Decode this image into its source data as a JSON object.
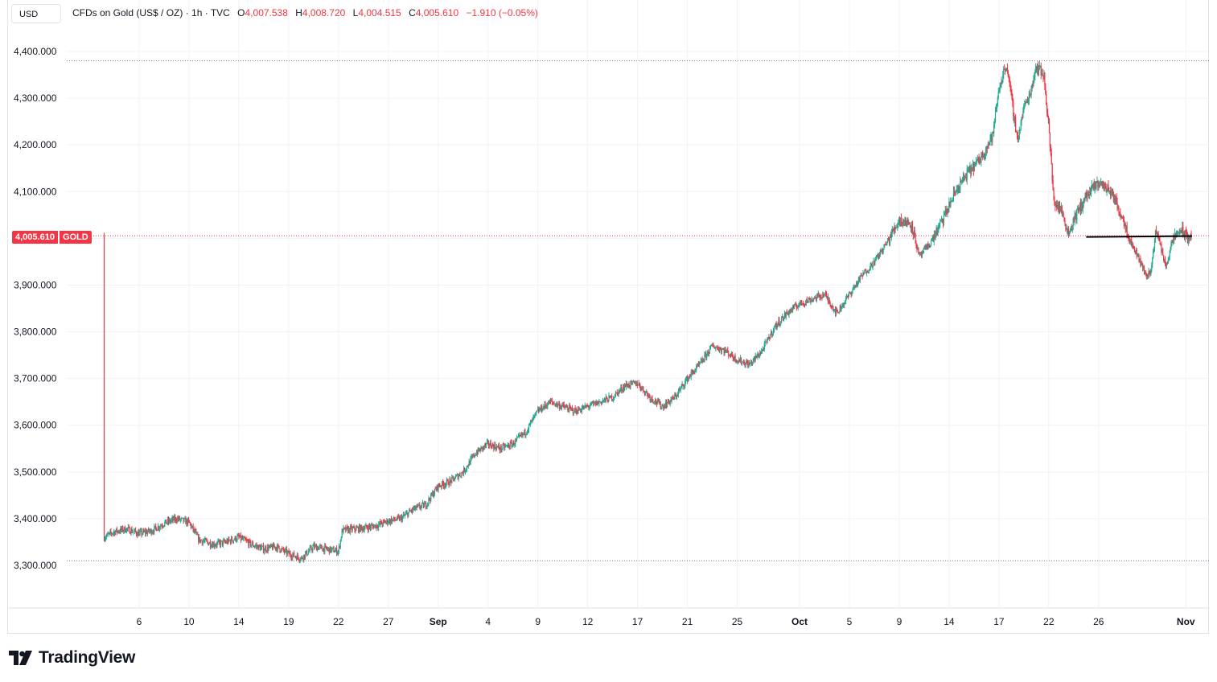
{
  "currency_label": "USD",
  "legend": {
    "title": "CFDs on Gold (US$ / OZ) · 1h · TVC",
    "open_label": "O",
    "open": "4,007.538",
    "high_label": "H",
    "high": "4,008.720",
    "low_label": "L",
    "low": "4,004.515",
    "close_label": "C",
    "close": "4,005.610",
    "change": "−1.910 (−0.05%)"
  },
  "last_price": {
    "value": "4,005.610",
    "symbol": "GOLD"
  },
  "brand": "TradingView",
  "colors": {
    "up": "#22ab94",
    "down": "#f23645",
    "grid": "#f0f3fa",
    "axis_text": "#131722"
  },
  "chart_data": {
    "type": "candlestick",
    "title": "CFDs on Gold (US$ / OZ) · 1h · TVC",
    "ylim": [
      3230,
      4460
    ],
    "y_ticks": [
      {
        "value": 3300,
        "label": "3,300.000"
      },
      {
        "value": 3400,
        "label": "3,400.000"
      },
      {
        "value": 3500,
        "label": "3,500.000"
      },
      {
        "value": 3600,
        "label": "3,600.000"
      },
      {
        "value": 3700,
        "label": "3,700.000"
      },
      {
        "value": 3800,
        "label": "3,800.000"
      },
      {
        "value": 3900,
        "label": "3,900.000"
      },
      {
        "value": 4000,
        "label": "4,000.000"
      },
      {
        "value": 4100,
        "label": "4,100.000"
      },
      {
        "value": 4200,
        "label": "4,200.000"
      },
      {
        "value": 4300,
        "label": "4,300.000"
      },
      {
        "value": 4400,
        "label": "4,400.000"
      }
    ],
    "x_range": [
      3.1,
      90.5
    ],
    "x_ticks": [
      {
        "day": 6,
        "label": "6"
      },
      {
        "day": 10,
        "label": "10"
      },
      {
        "day": 14,
        "label": "14"
      },
      {
        "day": 18,
        "label": "19"
      },
      {
        "day": 22,
        "label": "22"
      },
      {
        "day": 26,
        "label": "27"
      },
      {
        "day": 30,
        "label": "Sep"
      },
      {
        "day": 34,
        "label": "4"
      },
      {
        "day": 38,
        "label": "9"
      },
      {
        "day": 42,
        "label": "12"
      },
      {
        "day": 46,
        "label": "17"
      },
      {
        "day": 50,
        "label": "21"
      },
      {
        "day": 54,
        "label": "25"
      },
      {
        "day": 59,
        "label": "Oct"
      },
      {
        "day": 63,
        "label": "5"
      },
      {
        "day": 67,
        "label": "9"
      },
      {
        "day": 71,
        "label": "14"
      },
      {
        "day": 75,
        "label": "17"
      },
      {
        "day": 79,
        "label": "22"
      },
      {
        "day": 83,
        "label": "26"
      },
      {
        "day": 90,
        "label": "Nov"
      }
    ],
    "bold_x_labels": [
      "Sep",
      "Oct",
      "Nov"
    ],
    "high_line": 4380,
    "low_line": 3310,
    "last_price": 4005.61,
    "trendline": {
      "from": [
        82,
        4003
      ],
      "to": [
        90.5,
        4005
      ]
    },
    "path": [
      [
        3.2,
        3360
      ],
      [
        4,
        3372
      ],
      [
        5,
        3378
      ],
      [
        6,
        3368
      ],
      [
        7,
        3374
      ],
      [
        8,
        3390
      ],
      [
        9,
        3400
      ],
      [
        10,
        3392
      ],
      [
        10.8,
        3355
      ],
      [
        12,
        3345
      ],
      [
        13,
        3350
      ],
      [
        14,
        3360
      ],
      [
        15,
        3345
      ],
      [
        16,
        3335
      ],
      [
        17,
        3340
      ],
      [
        18,
        3325
      ],
      [
        19,
        3315
      ],
      [
        20,
        3340
      ],
      [
        21,
        3335
      ],
      [
        22,
        3330
      ],
      [
        22.3,
        3375
      ],
      [
        24,
        3380
      ],
      [
        25,
        3385
      ],
      [
        26,
        3395
      ],
      [
        27,
        3400
      ],
      [
        28,
        3420
      ],
      [
        29,
        3430
      ],
      [
        30,
        3470
      ],
      [
        31,
        3480
      ],
      [
        32,
        3500
      ],
      [
        33,
        3540
      ],
      [
        34,
        3560
      ],
      [
        35,
        3550
      ],
      [
        36,
        3560
      ],
      [
        37,
        3585
      ],
      [
        38,
        3630
      ],
      [
        39,
        3650
      ],
      [
        40,
        3640
      ],
      [
        41,
        3630
      ],
      [
        42,
        3640
      ],
      [
        43,
        3650
      ],
      [
        44,
        3660
      ],
      [
        45,
        3685
      ],
      [
        46,
        3690
      ],
      [
        47,
        3660
      ],
      [
        48,
        3640
      ],
      [
        49,
        3660
      ],
      [
        50,
        3700
      ],
      [
        51,
        3730
      ],
      [
        52,
        3770
      ],
      [
        53,
        3760
      ],
      [
        54,
        3740
      ],
      [
        55,
        3730
      ],
      [
        56,
        3760
      ],
      [
        57,
        3810
      ],
      [
        58,
        3840
      ],
      [
        59,
        3860
      ],
      [
        60,
        3870
      ],
      [
        61,
        3880
      ],
      [
        62,
        3840
      ],
      [
        63,
        3880
      ],
      [
        64,
        3920
      ],
      [
        65,
        3950
      ],
      [
        66,
        3990
      ],
      [
        67,
        4040
      ],
      [
        68,
        4030
      ],
      [
        68.6,
        3960
      ],
      [
        69.5,
        3990
      ],
      [
        70.5,
        4040
      ],
      [
        71.5,
        4100
      ],
      [
        72.5,
        4140
      ],
      [
        73.5,
        4170
      ],
      [
        74.5,
        4220
      ],
      [
        75,
        4320
      ],
      [
        75.6,
        4375
      ],
      [
        76,
        4300
      ],
      [
        76.5,
        4210
      ],
      [
        77,
        4280
      ],
      [
        77.5,
        4310
      ],
      [
        78,
        4370
      ],
      [
        78.6,
        4350
      ],
      [
        79,
        4240
      ],
      [
        79.4,
        4080
      ],
      [
        80,
        4060
      ],
      [
        80.6,
        4010
      ],
      [
        81,
        4040
      ],
      [
        82,
        4090
      ],
      [
        83,
        4120
      ],
      [
        84,
        4100
      ],
      [
        85,
        4040
      ],
      [
        85.6,
        3990
      ],
      [
        86.2,
        3960
      ],
      [
        86.8,
        3920
      ],
      [
        87.2,
        3930
      ],
      [
        87.6,
        4020
      ],
      [
        88,
        3980
      ],
      [
        88.4,
        3940
      ],
      [
        89,
        4000
      ],
      [
        89.6,
        4020
      ],
      [
        90.1,
        4000
      ],
      [
        90.5,
        4005.61
      ]
    ]
  }
}
